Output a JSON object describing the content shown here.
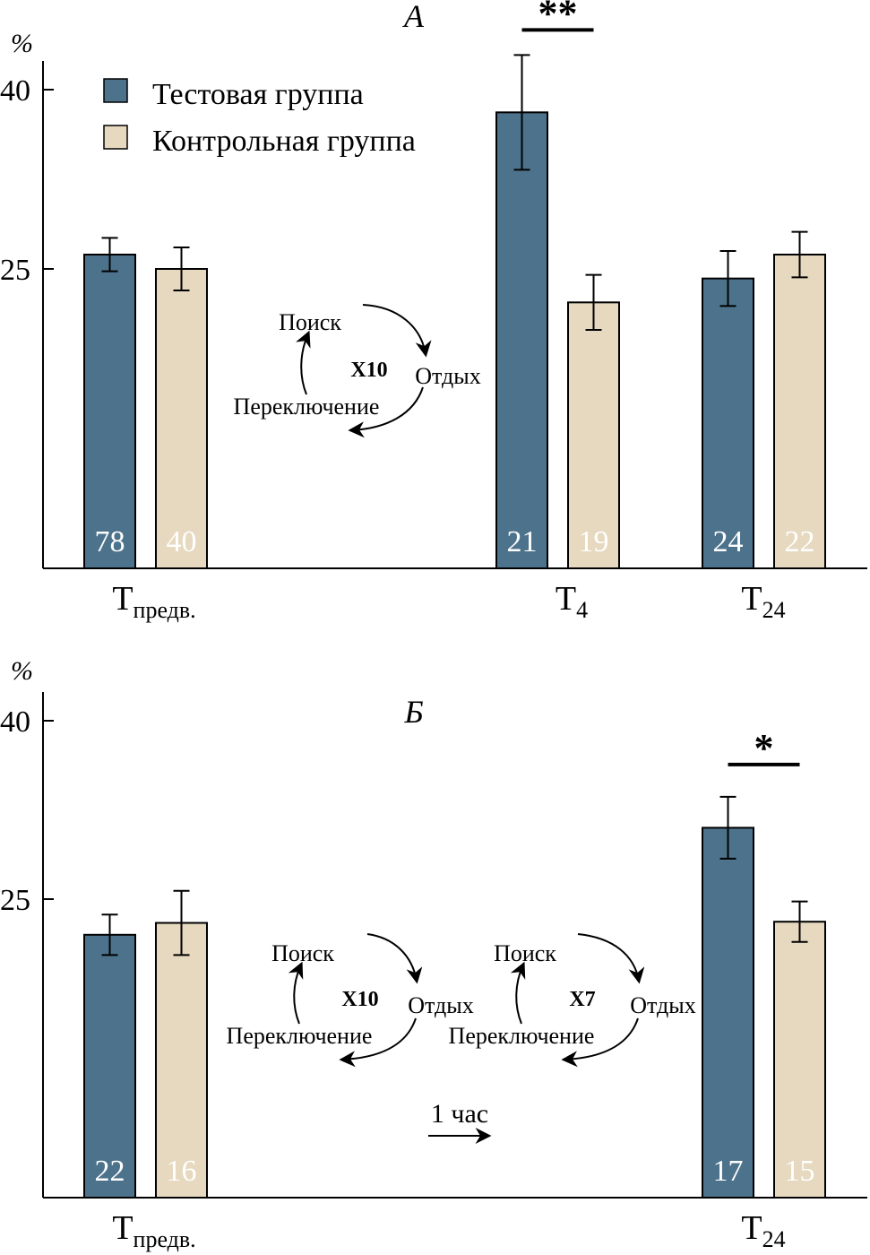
{
  "colors": {
    "test": "#4d738c",
    "control": "#e6d9bf",
    "stroke": "#000000",
    "count_text": "#ffffff"
  },
  "legend": {
    "test": "Тестовая группа",
    "control": "Контрольная группа"
  },
  "axis_unit": "%",
  "chart_data": [
    {
      "type": "bar",
      "title": "А",
      "xlabel": "",
      "ylabel": "%",
      "ylim": [
        0,
        42
      ],
      "yticks": [
        25,
        40
      ],
      "categories": [
        {
          "main": "Т",
          "sub": "предв."
        },
        {
          "main": "Т",
          "sub": "4"
        },
        {
          "main": "Т",
          "sub": "24"
        }
      ],
      "series": [
        {
          "name": "Тестовая группа",
          "values": [
            26.2,
            38.1,
            24.2
          ],
          "errors": [
            1.4,
            4.8,
            2.3
          ],
          "n": [
            "78",
            "21",
            "24"
          ]
        },
        {
          "name": "Контрольная группа",
          "values": [
            25.0,
            22.2,
            26.2
          ],
          "errors": [
            1.8,
            2.3,
            1.9
          ],
          "n": [
            "40",
            "19",
            "22"
          ]
        }
      ],
      "significance": [
        {
          "category": 1,
          "label": "**"
        }
      ],
      "cycle_diagrams": [
        {
          "search": "Поиск",
          "rest": "Отдых",
          "switch": "Переключение",
          "multiplier": "X10"
        }
      ]
    },
    {
      "type": "bar",
      "title": "Б",
      "xlabel": "",
      "ylabel": "%",
      "ylim": [
        0,
        42
      ],
      "yticks": [
        25,
        40
      ],
      "categories": [
        {
          "main": "Т",
          "sub": "предв."
        },
        {
          "main": "Т",
          "sub": "24"
        }
      ],
      "series": [
        {
          "name": "Тестовая группа",
          "values": [
            22.0,
            31.0
          ],
          "errors": [
            1.7,
            2.6
          ],
          "n": [
            "22",
            "17"
          ]
        },
        {
          "name": "Контрольная группа",
          "values": [
            23.0,
            23.1
          ],
          "errors": [
            2.7,
            1.7
          ],
          "n": [
            "16",
            "15"
          ]
        }
      ],
      "significance": [
        {
          "category": 1,
          "label": "*"
        }
      ],
      "cycle_diagrams": [
        {
          "search": "Поиск",
          "rest": "Отдых",
          "switch": "Переключение",
          "multiplier": "X10"
        },
        {
          "search": "Поиск",
          "rest": "Отдых",
          "switch": "Переключение",
          "multiplier": "X7"
        }
      ],
      "duration_label": "1 час"
    }
  ]
}
